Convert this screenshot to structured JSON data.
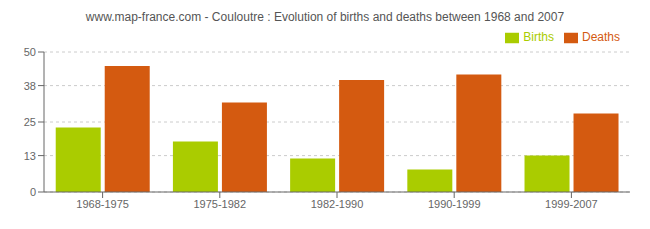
{
  "chart_data": {
    "type": "bar",
    "title": "www.map-france.com - Couloutre : Evolution of births and deaths between 1968 and 2007",
    "categories": [
      "1968-1975",
      "1975-1982",
      "1982-1990",
      "1990-1999",
      "1999-2007"
    ],
    "series": [
      {
        "name": "Births",
        "color": "#aacc00",
        "values": [
          23,
          18,
          12,
          8,
          13
        ]
      },
      {
        "name": "Deaths",
        "color": "#d45a10",
        "values": [
          45,
          32,
          40,
          42,
          28
        ]
      }
    ],
    "ylim": [
      0,
      50
    ],
    "yticks": [
      0,
      13,
      25,
      38,
      50
    ],
    "grid": true,
    "legend": "upper right"
  }
}
